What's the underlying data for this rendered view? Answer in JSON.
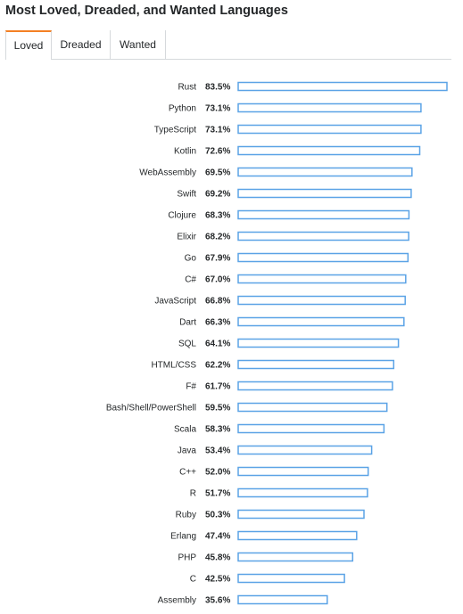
{
  "title": "Most Loved, Dreaded, and Wanted Languages",
  "tabs": [
    {
      "label": "Loved",
      "active": true
    },
    {
      "label": "Dreaded",
      "active": false
    },
    {
      "label": "Wanted",
      "active": false
    }
  ],
  "colors": {
    "accent": "#f48024",
    "bar_stroke": "#5ba3e6",
    "border": "#d6d9dc"
  },
  "chart_data": {
    "type": "bar",
    "orientation": "horizontal",
    "value_unit": "%",
    "xlim": [
      0,
      83.5
    ],
    "categories": [
      "Rust",
      "Python",
      "TypeScript",
      "Kotlin",
      "WebAssembly",
      "Swift",
      "Clojure",
      "Elixir",
      "Go",
      "C#",
      "JavaScript",
      "Dart",
      "SQL",
      "HTML/CSS",
      "F#",
      "Bash/Shell/PowerShell",
      "Scala",
      "Java",
      "C++",
      "R",
      "Ruby",
      "Erlang",
      "PHP",
      "C",
      "Assembly"
    ],
    "values": [
      83.5,
      73.1,
      73.1,
      72.6,
      69.5,
      69.2,
      68.3,
      68.2,
      67.9,
      67.0,
      66.8,
      66.3,
      64.1,
      62.2,
      61.7,
      59.5,
      58.3,
      53.4,
      52.0,
      51.7,
      50.3,
      47.4,
      45.8,
      42.5,
      35.6
    ],
    "value_labels": [
      "83.5%",
      "73.1%",
      "73.1%",
      "72.6%",
      "69.5%",
      "69.2%",
      "68.3%",
      "68.2%",
      "67.9%",
      "67.0%",
      "66.8%",
      "66.3%",
      "64.1%",
      "62.2%",
      "61.7%",
      "59.5%",
      "58.3%",
      "53.4%",
      "52.0%",
      "51.7%",
      "50.3%",
      "47.4%",
      "45.8%",
      "42.5%",
      "35.6%"
    ],
    "grid": false,
    "legend": "none"
  }
}
